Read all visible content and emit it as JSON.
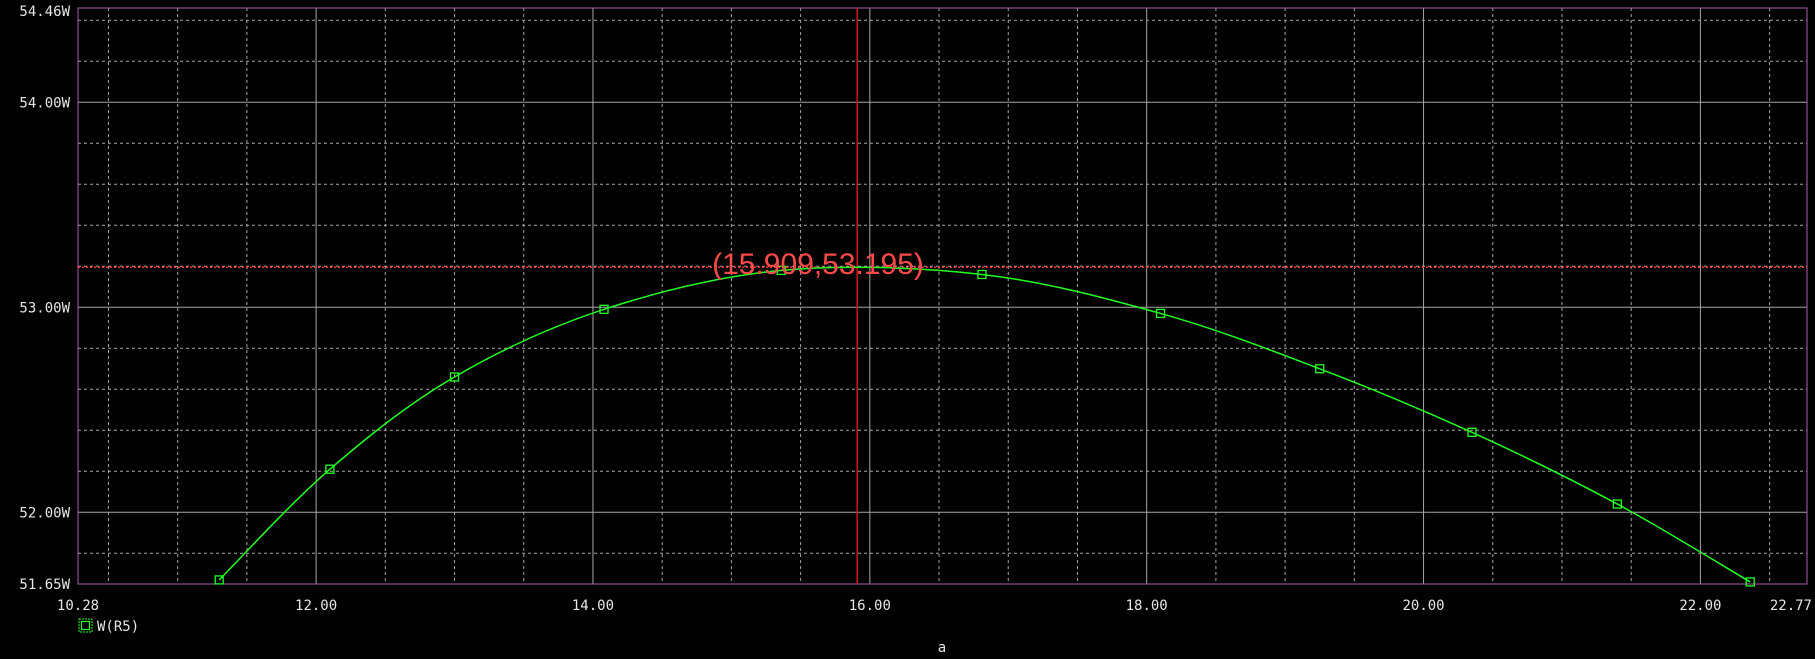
{
  "chart_data": {
    "type": "line",
    "xlabel": "a",
    "ylabel": "",
    "xlim": [
      10.28,
      22.77
    ],
    "ylim": [
      51.65,
      54.46
    ],
    "x_ticks": [
      {
        "value": 10.28,
        "label": "10.28"
      },
      {
        "value": 12.0,
        "label": "12.00"
      },
      {
        "value": 14.0,
        "label": "14.00"
      },
      {
        "value": 16.0,
        "label": "16.00"
      },
      {
        "value": 18.0,
        "label": "18.00"
      },
      {
        "value": 20.0,
        "label": "20.00"
      },
      {
        "value": 22.0,
        "label": "22.00"
      },
      {
        "value": 22.77,
        "label": "22.77"
      }
    ],
    "y_ticks": [
      {
        "value": 51.65,
        "label": "51.65W"
      },
      {
        "value": 52.0,
        "label": "52.00W"
      },
      {
        "value": 53.0,
        "label": "53.00W"
      },
      {
        "value": 54.0,
        "label": "54.00W"
      },
      {
        "value": 54.46,
        "label": "54.46W"
      }
    ],
    "grid": true,
    "legend_position": "bottom-left",
    "series": [
      {
        "name": "W(R5)",
        "color": "#22ff22",
        "marker": "square",
        "x": [
          11.3,
          12.1,
          13.0,
          14.08,
          15.36,
          16.81,
          18.1,
          19.25,
          20.35,
          21.4,
          22.36
        ],
        "y": [
          51.67,
          52.21,
          52.66,
          52.99,
          53.18,
          53.16,
          52.97,
          52.7,
          52.39,
          52.04,
          51.66
        ]
      }
    ],
    "cursor": {
      "x": 15.909,
      "y": 53.195,
      "label": "(15.909,53.195)",
      "color": "#ff4a4a"
    },
    "colors": {
      "background": "#000000",
      "grid_major": "#a6a6a6",
      "grid_minor": "#a6a6a6",
      "frame": "#b05ab0",
      "text": "#e6e6e6"
    }
  }
}
